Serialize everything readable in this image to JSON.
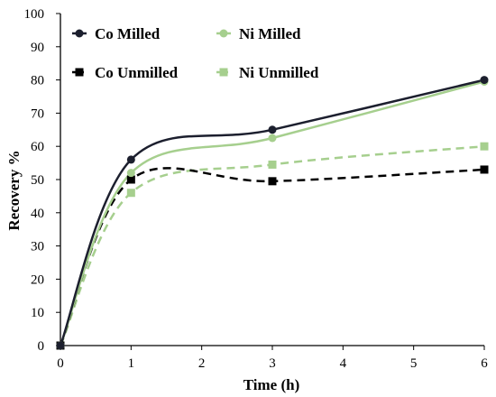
{
  "chart_data": {
    "type": "line",
    "xlabel": "Time (h)",
    "ylabel": "Recovery %",
    "xlim": [
      0,
      6
    ],
    "ylim": [
      0,
      100
    ],
    "x_ticks": [
      "0",
      "1",
      "2",
      "3",
      "4",
      "5",
      "6"
    ],
    "y_ticks": [
      "0",
      "10",
      "20",
      "30",
      "40",
      "50",
      "60",
      "70",
      "80",
      "90",
      "100"
    ],
    "x": [
      0,
      1,
      3,
      6
    ],
    "grid": false,
    "legend_position": "top-left, inside plot",
    "series": [
      {
        "name": "Co Milled",
        "values": [
          0,
          56,
          65,
          80
        ],
        "color": "#1c1f2e",
        "marker": "circle",
        "line": "solid"
      },
      {
        "name": "Ni Milled",
        "values": [
          0,
          52,
          62.5,
          79.5
        ],
        "color": "#a6cf8e",
        "marker": "circle",
        "line": "solid"
      },
      {
        "name": "Co Unmilled",
        "values": [
          0,
          50,
          49.5,
          53
        ],
        "color": "#000000",
        "marker": "square",
        "line": "dashed"
      },
      {
        "name": "Ni Unmilled",
        "values": [
          0,
          46,
          54.5,
          60
        ],
        "color": "#a6cf8e",
        "marker": "square",
        "line": "dashed"
      }
    ]
  }
}
